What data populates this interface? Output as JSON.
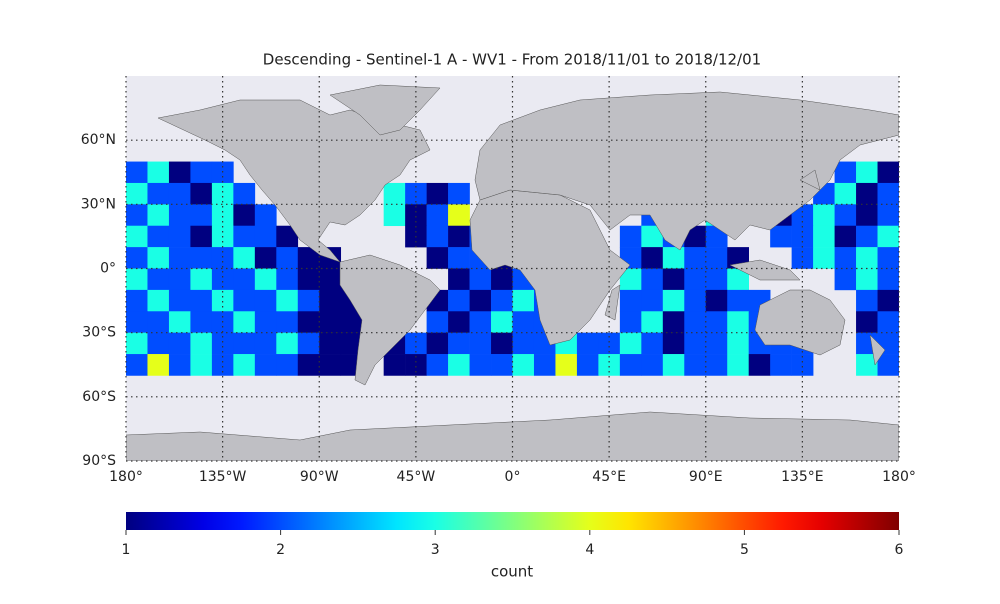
{
  "chart_data": {
    "type": "heatmap",
    "title": "Descending - Sentinel-1 A - WV1 - From 2018/11/01 to 2018/12/01",
    "colormap": "jet",
    "xlim": [
      -180,
      180
    ],
    "ylim": [
      -90,
      90
    ],
    "xticks": [
      {
        "value": -180,
        "label": "180°"
      },
      {
        "value": -135,
        "label": "135°W"
      },
      {
        "value": -90,
        "label": "90°W"
      },
      {
        "value": -45,
        "label": "45°W"
      },
      {
        "value": 0,
        "label": "0°"
      },
      {
        "value": 45,
        "label": "45°E"
      },
      {
        "value": 90,
        "label": "90°E"
      },
      {
        "value": 135,
        "label": "135°E"
      },
      {
        "value": 180,
        "label": "180°"
      }
    ],
    "yticks": [
      {
        "value": 60,
        "label": "60°N"
      },
      {
        "value": 30,
        "label": "30°N"
      },
      {
        "value": 0,
        "label": "0°"
      },
      {
        "value": -30,
        "label": "30°S"
      },
      {
        "value": -60,
        "label": "60°S"
      },
      {
        "value": -90,
        "label": "90°S"
      }
    ],
    "grid": true,
    "xbins": [
      -180,
      -170,
      -160,
      -150,
      -140,
      -130,
      -120,
      -110,
      -100,
      -90,
      -80,
      -70,
      -60,
      -50,
      -40,
      -30,
      -20,
      -10,
      0,
      10,
      20,
      30,
      40,
      50,
      60,
      70,
      80,
      90,
      100,
      110,
      120,
      130,
      140,
      150,
      160,
      170,
      180
    ],
    "ybins": [
      50,
      40,
      30,
      20,
      10,
      0,
      -10,
      -20,
      -30,
      -40,
      -50
    ],
    "values": [
      [
        2,
        3,
        1,
        2,
        2,
        null,
        null,
        null,
        null,
        null,
        null,
        null,
        null,
        null,
        null,
        null,
        null,
        null,
        null,
        null,
        null,
        null,
        null,
        null,
        null,
        null,
        null,
        null,
        null,
        null,
        null,
        null,
        null,
        2,
        3,
        1
      ],
      [
        3,
        2,
        2,
        1,
        3,
        2,
        null,
        null,
        null,
        null,
        null,
        null,
        3,
        2,
        1,
        2,
        null,
        null,
        null,
        null,
        null,
        null,
        null,
        null,
        null,
        null,
        null,
        null,
        null,
        null,
        null,
        null,
        2,
        3,
        1,
        2
      ],
      [
        2,
        3,
        2,
        2,
        3,
        1,
        2,
        null,
        null,
        null,
        null,
        null,
        3,
        1,
        2,
        4,
        null,
        null,
        null,
        null,
        null,
        null,
        null,
        null,
        2,
        null,
        null,
        3,
        null,
        null,
        1,
        2,
        3,
        2,
        1,
        2
      ],
      [
        3,
        2,
        2,
        1,
        3,
        2,
        2,
        1,
        null,
        null,
        null,
        null,
        null,
        1,
        2,
        1,
        2,
        null,
        null,
        null,
        null,
        null,
        null,
        2,
        3,
        2,
        1,
        2,
        null,
        null,
        2,
        2,
        3,
        1,
        2,
        3
      ],
      [
        2,
        3,
        2,
        2,
        2,
        3,
        1,
        2,
        1,
        1,
        null,
        null,
        null,
        null,
        1,
        2,
        2,
        1,
        null,
        null,
        null,
        null,
        null,
        2,
        1,
        3,
        2,
        2,
        1,
        null,
        null,
        2,
        3,
        2,
        3,
        2
      ],
      [
        3,
        2,
        2,
        3,
        2,
        2,
        3,
        2,
        1,
        1,
        1,
        null,
        null,
        null,
        null,
        1,
        2,
        1,
        2,
        2,
        null,
        null,
        null,
        3,
        2,
        1,
        2,
        2,
        3,
        null,
        null,
        null,
        null,
        2,
        3,
        2
      ],
      [
        2,
        3,
        2,
        2,
        3,
        2,
        2,
        3,
        2,
        1,
        1,
        null,
        null,
        null,
        1,
        2,
        1,
        2,
        3,
        2,
        null,
        null,
        null,
        2,
        2,
        3,
        2,
        1,
        2,
        2,
        null,
        null,
        null,
        null,
        2,
        1
      ],
      [
        2,
        2,
        3,
        2,
        2,
        3,
        2,
        2,
        1,
        1,
        1,
        null,
        null,
        null,
        2,
        1,
        2,
        3,
        2,
        2,
        null,
        null,
        null,
        2,
        3,
        1,
        2,
        2,
        3,
        2,
        null,
        null,
        null,
        null,
        1,
        2
      ],
      [
        3,
        2,
        2,
        3,
        2,
        2,
        2,
        3,
        2,
        1,
        1,
        null,
        1,
        2,
        1,
        2,
        2,
        1,
        2,
        2,
        3,
        2,
        2,
        3,
        2,
        1,
        2,
        2,
        3,
        2,
        2,
        2,
        null,
        null,
        2,
        2
      ],
      [
        2,
        4,
        2,
        3,
        2,
        3,
        2,
        2,
        1,
        1,
        1,
        null,
        1,
        1,
        2,
        3,
        2,
        2,
        3,
        2,
        4,
        2,
        3,
        2,
        2,
        3,
        2,
        2,
        3,
        1,
        2,
        2,
        null,
        null,
        3,
        2
      ]
    ],
    "colorbar": {
      "label": "count",
      "lim": [
        1,
        6
      ],
      "ticks": [
        1,
        2,
        3,
        4,
        5,
        6
      ]
    }
  }
}
